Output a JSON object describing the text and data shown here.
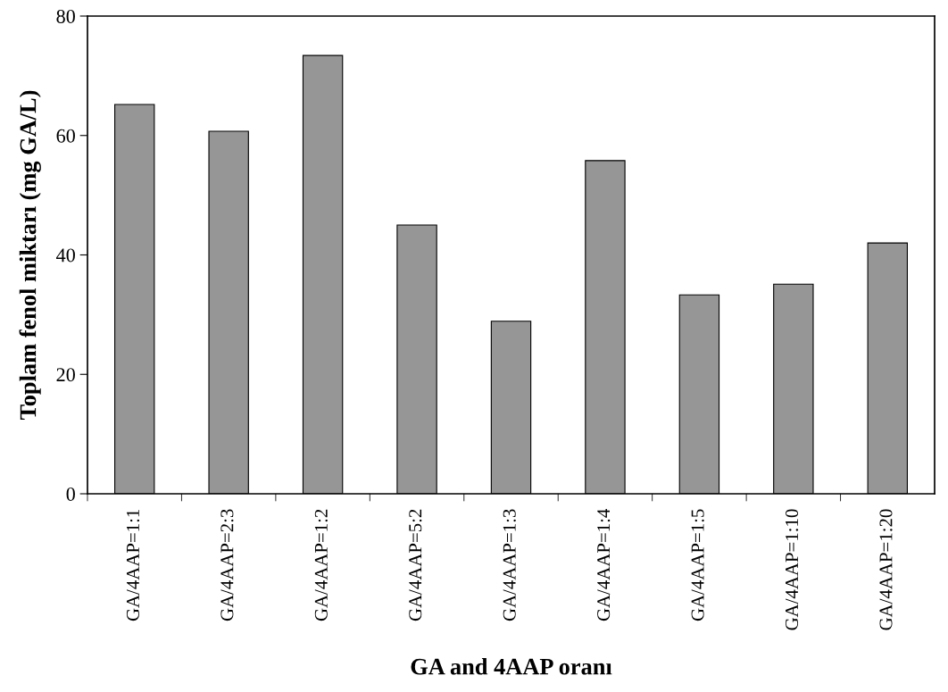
{
  "chart_data": {
    "type": "bar",
    "xlabel": "GA and 4AAP oranı",
    "ylabel": "Toplam fenol miktarı (mg GA/L)",
    "categories": [
      "GA/4AAP=1:1",
      "GA/4AAP=2:3",
      "GA/4AAP=1:2",
      "GA/4AAP=5:2",
      "GA/4AAP=1:3",
      "GA/4AAP=1:4",
      "GA/4AAP=1:5",
      "GA/4AAP=1:10",
      "GA/4AAP=1:20"
    ],
    "values": [
      65.2,
      60.7,
      73.4,
      45.0,
      28.9,
      55.8,
      33.3,
      35.1,
      42.0
    ],
    "color": "#969696",
    "ylim": [
      0,
      80
    ],
    "yticks": [
      0,
      20,
      40,
      60,
      80
    ],
    "grid": false,
    "legend": false
  }
}
